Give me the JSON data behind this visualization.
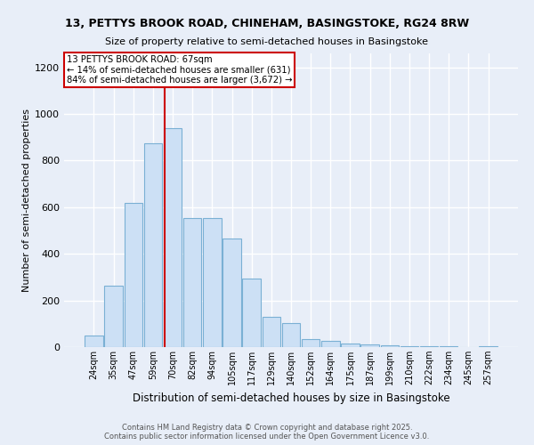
{
  "title_line1": "13, PETTYS BROOK ROAD, CHINEHAM, BASINGSTOKE, RG24 8RW",
  "title_line2": "Size of property relative to semi-detached houses in Basingstoke",
  "xlabel": "Distribution of semi-detached houses by size in Basingstoke",
  "ylabel": "Number of semi-detached properties",
  "bar_labels": [
    "24sqm",
    "35sqm",
    "47sqm",
    "59sqm",
    "70sqm",
    "82sqm",
    "94sqm",
    "105sqm",
    "117sqm",
    "129sqm",
    "140sqm",
    "152sqm",
    "164sqm",
    "175sqm",
    "187sqm",
    "199sqm",
    "210sqm",
    "222sqm",
    "234sqm",
    "245sqm",
    "257sqm"
  ],
  "bar_values": [
    50,
    265,
    620,
    875,
    940,
    555,
    555,
    465,
    295,
    130,
    105,
    35,
    25,
    15,
    10,
    8,
    5,
    3,
    2,
    0,
    2
  ],
  "bar_color": "#cce0f5",
  "bar_edge_color": "#7ab0d4",
  "vline_index": 3.575,
  "annotation_text_line1": "13 PETTYS BROOK ROAD: 67sqm",
  "annotation_text_line2": "← 14% of semi-detached houses are smaller (631)",
  "annotation_text_line3": "84% of semi-detached houses are larger (3,672) →",
  "ylim": [
    0,
    1260
  ],
  "yticks": [
    0,
    200,
    400,
    600,
    800,
    1000,
    1200
  ],
  "vline_color": "#cc0000",
  "annotation_box_edge": "#cc0000",
  "footer_line1": "Contains HM Land Registry data © Crown copyright and database right 2025.",
  "footer_line2": "Contains public sector information licensed under the Open Government Licence v3.0.",
  "background_color": "#e8eef8",
  "grid_color": "#ffffff"
}
